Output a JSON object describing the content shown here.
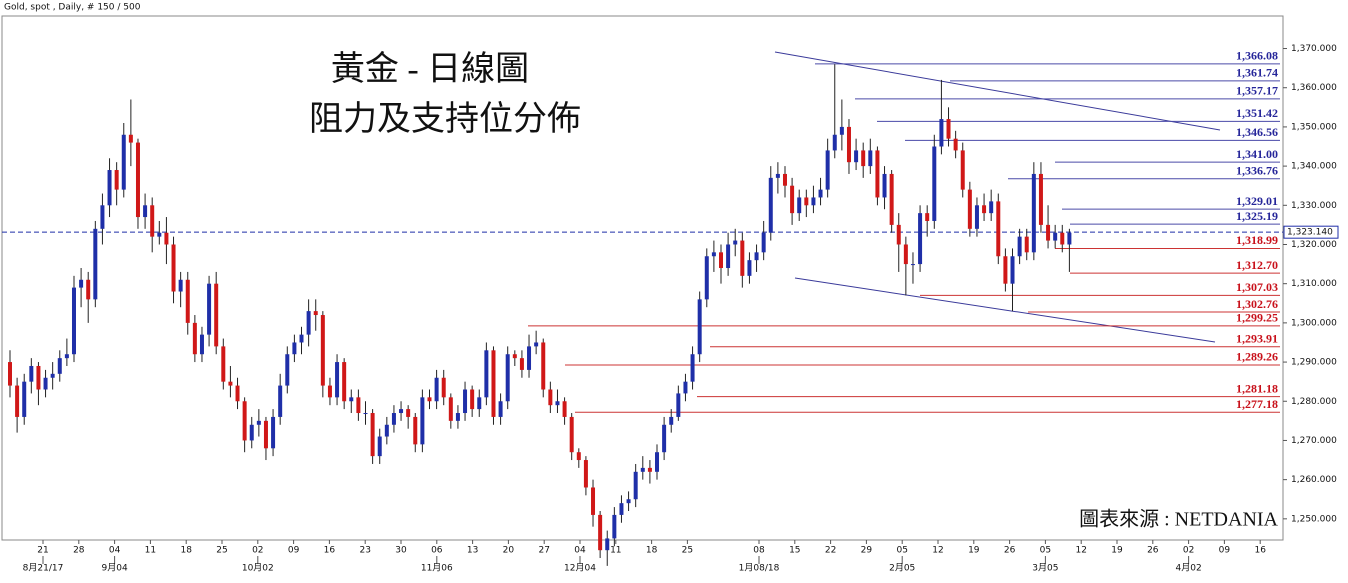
{
  "chart_data": {
    "type": "candlestick",
    "header": "Gold, spot , Daily, # 150 / 500",
    "title": "黃金 - 日線圖",
    "subtitle": "阻力及支持位分佈",
    "source": "圖表來源 : NETDANIA",
    "up_color": "#1f2fa8",
    "down_color": "#d01818",
    "ylim": [
      1244.6,
      1378.3
    ],
    "yticks": [
      {
        "value": 1250,
        "label": "1,250.000"
      },
      {
        "value": 1260,
        "label": "1,260.000"
      },
      {
        "value": 1270,
        "label": "1,270.000"
      },
      {
        "value": 1280,
        "label": "1,280.000"
      },
      {
        "value": 1290,
        "label": "1,290.000"
      },
      {
        "value": 1300,
        "label": "1,300.000"
      },
      {
        "value": 1310,
        "label": "1,310.000"
      },
      {
        "value": 1320,
        "label": "1,320.000"
      },
      {
        "value": 1330,
        "label": "1,330.000"
      },
      {
        "value": 1340,
        "label": "1,340.000"
      },
      {
        "value": 1350,
        "label": "1,350.000"
      },
      {
        "value": 1360,
        "label": "1,360.000"
      },
      {
        "value": 1370,
        "label": "1,370.000"
      }
    ],
    "xticks": [
      "21",
      "28",
      "04",
      "11",
      "18",
      "25",
      "02",
      "09",
      "16",
      "23",
      "30",
      "06",
      "13",
      "20",
      "27",
      "04",
      "11",
      "18",
      "25",
      null,
      "08",
      "15",
      "22",
      "29",
      "05",
      "12",
      "19",
      "26",
      "05",
      "12",
      "19",
      "26",
      "02",
      "09",
      "16"
    ],
    "month_labels": [
      "8月21/17",
      "9月04",
      "10月02",
      "11月06",
      "12月04",
      "1月08/18",
      "2月05",
      "3月05",
      "4月02"
    ],
    "last_price": {
      "value": 1323.14,
      "label": "1,323.140"
    },
    "resistance": [
      {
        "value": 1366.08,
        "label": "1,366.08"
      },
      {
        "value": 1361.74,
        "label": "1,361.74"
      },
      {
        "value": 1357.17,
        "label": "1,357.17"
      },
      {
        "value": 1351.42,
        "label": "1,351.42"
      },
      {
        "value": 1346.56,
        "label": "1,346.56"
      },
      {
        "value": 1341,
        "label": "1,341.00"
      },
      {
        "value": 1336.76,
        "label": "1,336.76"
      },
      {
        "value": 1329.01,
        "label": "1,329.01"
      },
      {
        "value": 1325.19,
        "label": "1,325.19"
      }
    ],
    "support": [
      {
        "value": 1318.99,
        "label": "1,318.99"
      },
      {
        "value": 1312.7,
        "label": "1,312.70"
      },
      {
        "value": 1307.03,
        "label": "1,307.03"
      },
      {
        "value": 1302.76,
        "label": "1,302.76"
      },
      {
        "value": 1299.25,
        "label": "1,299.25"
      },
      {
        "value": 1293.91,
        "label": "1,293.91"
      },
      {
        "value": 1289.26,
        "label": "1,289.26"
      },
      {
        "value": 1281.18,
        "label": "1,281.18"
      },
      {
        "value": 1277.18,
        "label": "1,277.18"
      }
    ],
    "ohlc": [
      [
        1290,
        1293,
        1281,
        1284
      ],
      [
        1284,
        1286,
        1272,
        1276
      ],
      [
        1276,
        1287,
        1274,
        1285
      ],
      [
        1285,
        1291,
        1282,
        1289
      ],
      [
        1289,
        1290,
        1279,
        1283
      ],
      [
        1283,
        1288,
        1281,
        1286
      ],
      [
        1286,
        1290,
        1283,
        1287
      ],
      [
        1287,
        1293,
        1285,
        1291
      ],
      [
        1291,
        1296,
        1289,
        1292
      ],
      [
        1292,
        1312,
        1290,
        1309
      ],
      [
        1309,
        1314,
        1304,
        1311
      ],
      [
        1311,
        1313,
        1300,
        1306
      ],
      [
        1306,
        1326,
        1304,
        1324
      ],
      [
        1324,
        1333,
        1320,
        1330
      ],
      [
        1330,
        1342,
        1327,
        1339
      ],
      [
        1339,
        1341,
        1330,
        1334
      ],
      [
        1334,
        1351,
        1332,
        1348
      ],
      [
        1348,
        1357,
        1340,
        1346
      ],
      [
        1346,
        1347,
        1324,
        1327
      ],
      [
        1327,
        1333,
        1324,
        1330
      ],
      [
        1330,
        1332,
        1318,
        1322
      ],
      [
        1322,
        1326,
        1320,
        1323
      ],
      [
        1323,
        1327,
        1315,
        1320
      ],
      [
        1320,
        1322,
        1305,
        1308
      ],
      [
        1308,
        1313,
        1304,
        1311
      ],
      [
        1311,
        1313,
        1297,
        1300
      ],
      [
        1300,
        1302,
        1290,
        1292
      ],
      [
        1292,
        1299,
        1290,
        1297
      ],
      [
        1297,
        1312,
        1294,
        1310
      ],
      [
        1310,
        1313,
        1292,
        1294
      ],
      [
        1294,
        1296,
        1283,
        1285
      ],
      [
        1285,
        1289,
        1281,
        1284
      ],
      [
        1284,
        1286,
        1278,
        1280
      ],
      [
        1280,
        1281,
        1267,
        1270
      ],
      [
        1270,
        1276,
        1268,
        1274
      ],
      [
        1274,
        1278,
        1271,
        1275
      ],
      [
        1275,
        1276,
        1265,
        1268
      ],
      [
        1268,
        1278,
        1266,
        1276
      ],
      [
        1276,
        1287,
        1274,
        1284
      ],
      [
        1284,
        1294,
        1282,
        1292
      ],
      [
        1292,
        1297,
        1290,
        1295
      ],
      [
        1295,
        1299,
        1292,
        1297
      ],
      [
        1297,
        1306,
        1294,
        1303
      ],
      [
        1303,
        1306,
        1298,
        1302
      ],
      [
        1302,
        1303,
        1281,
        1284
      ],
      [
        1284,
        1286,
        1279,
        1281
      ],
      [
        1281,
        1292,
        1279,
        1290
      ],
      [
        1290,
        1291,
        1278,
        1280
      ],
      [
        1280,
        1283,
        1277,
        1281
      ],
      [
        1281,
        1283,
        1275,
        1277
      ],
      [
        1277,
        1280,
        1274,
        1277
      ],
      [
        1277,
        1278,
        1264,
        1266
      ],
      [
        1266,
        1273,
        1264,
        1271
      ],
      [
        1271,
        1276,
        1269,
        1274
      ],
      [
        1274,
        1279,
        1272,
        1277
      ],
      [
        1277,
        1280,
        1275,
        1278
      ],
      [
        1278,
        1279,
        1273,
        1276
      ],
      [
        1276,
        1277,
        1267,
        1269
      ],
      [
        1269,
        1283,
        1267,
        1281
      ],
      [
        1281,
        1283,
        1278,
        1280
      ],
      [
        1280,
        1288,
        1278,
        1286
      ],
      [
        1286,
        1288,
        1279,
        1281
      ],
      [
        1281,
        1282,
        1273,
        1275
      ],
      [
        1275,
        1279,
        1273,
        1277
      ],
      [
        1277,
        1285,
        1275,
        1283
      ],
      [
        1283,
        1284,
        1276,
        1278
      ],
      [
        1278,
        1283,
        1276,
        1281
      ],
      [
        1281,
        1295,
        1279,
        1293
      ],
      [
        1293,
        1294,
        1274,
        1276
      ],
      [
        1276,
        1282,
        1274,
        1280
      ],
      [
        1280,
        1294,
        1278,
        1292
      ],
      [
        1292,
        1293,
        1289,
        1291
      ],
      [
        1291,
        1293,
        1286,
        1288
      ],
      [
        1288,
        1297,
        1286,
        1294
      ],
      [
        1294,
        1298,
        1292,
        1295
      ],
      [
        1295,
        1296,
        1281,
        1283
      ],
      [
        1283,
        1285,
        1277,
        1279
      ],
      [
        1279,
        1283,
        1277,
        1280
      ],
      [
        1280,
        1281,
        1274,
        1276
      ],
      [
        1276,
        1277,
        1265,
        1267
      ],
      [
        1267,
        1268,
        1263,
        1265
      ],
      [
        1265,
        1266,
        1256,
        1258
      ],
      [
        1258,
        1260,
        1248,
        1251
      ],
      [
        1251,
        1252,
        1240,
        1242
      ],
      [
        1242,
        1247,
        1238,
        1245
      ],
      [
        1245,
        1253,
        1243,
        1251
      ],
      [
        1251,
        1256,
        1249,
        1254
      ],
      [
        1254,
        1257,
        1252,
        1255
      ],
      [
        1255,
        1264,
        1253,
        1262
      ],
      [
        1262,
        1266,
        1260,
        1263
      ],
      [
        1263,
        1265,
        1259,
        1262
      ],
      [
        1262,
        1269,
        1260,
        1267
      ],
      [
        1267,
        1276,
        1265,
        1274
      ],
      [
        1274,
        1278,
        1272,
        1276
      ],
      [
        1276,
        1284,
        1275,
        1282
      ],
      [
        1282,
        1287,
        1280,
        1285
      ],
      [
        1285,
        1294,
        1283,
        1292
      ],
      [
        1292,
        1308,
        1290,
        1306
      ],
      [
        1306,
        1319,
        1304,
        1317
      ],
      [
        1317,
        1321,
        1313,
        1318
      ],
      [
        1318,
        1320,
        1310,
        1314
      ],
      [
        1314,
        1323,
        1312,
        1320
      ],
      [
        1320,
        1324,
        1317,
        1321
      ],
      [
        1321,
        1323,
        1309,
        1312
      ],
      [
        1312,
        1318,
        1310,
        1316
      ],
      [
        1316,
        1320,
        1313,
        1318
      ],
      [
        1318,
        1326,
        1316,
        1323
      ],
      [
        1323,
        1340,
        1321,
        1337
      ],
      [
        1337,
        1341,
        1333,
        1338
      ],
      [
        1338,
        1340,
        1332,
        1335
      ],
      [
        1335,
        1337,
        1325,
        1328
      ],
      [
        1328,
        1334,
        1326,
        1332
      ],
      [
        1332,
        1334,
        1327,
        1330
      ],
      [
        1330,
        1335,
        1328,
        1332
      ],
      [
        1332,
        1337,
        1330,
        1334
      ],
      [
        1334,
        1347,
        1332,
        1344
      ],
      [
        1344,
        1366,
        1342,
        1348
      ],
      [
        1348,
        1357,
        1344,
        1350
      ],
      [
        1350,
        1352,
        1338,
        1341
      ],
      [
        1341,
        1347,
        1339,
        1344
      ],
      [
        1344,
        1346,
        1337,
        1340
      ],
      [
        1340,
        1347,
        1338,
        1344
      ],
      [
        1344,
        1345,
        1330,
        1332
      ],
      [
        1332,
        1340,
        1329,
        1338
      ],
      [
        1338,
        1339,
        1323,
        1325
      ],
      [
        1325,
        1328,
        1313,
        1320
      ],
      [
        1320,
        1322,
        1307,
        1315
      ],
      [
        1315,
        1318,
        1310,
        1315
      ],
      [
        1315,
        1330,
        1313,
        1328
      ],
      [
        1328,
        1330,
        1322,
        1326
      ],
      [
        1326,
        1348,
        1324,
        1345
      ],
      [
        1345,
        1362,
        1343,
        1352
      ],
      [
        1352,
        1355,
        1345,
        1347
      ],
      [
        1347,
        1349,
        1342,
        1344
      ],
      [
        1344,
        1346,
        1332,
        1334
      ],
      [
        1334,
        1336,
        1322,
        1324
      ],
      [
        1324,
        1332,
        1322,
        1330
      ],
      [
        1330,
        1333,
        1326,
        1328
      ],
      [
        1328,
        1334,
        1326,
        1331
      ],
      [
        1331,
        1333,
        1315,
        1317
      ],
      [
        1317,
        1319,
        1308,
        1310
      ],
      [
        1310,
        1319,
        1303,
        1317
      ],
      [
        1317,
        1324,
        1315,
        1322
      ],
      [
        1322,
        1324,
        1316,
        1318
      ],
      [
        1318,
        1341,
        1316,
        1338
      ],
      [
        1338,
        1341,
        1323,
        1325
      ],
      [
        1325,
        1330,
        1319,
        1321
      ],
      [
        1321,
        1325,
        1319,
        1323
      ],
      [
        1323,
        1325,
        1318,
        1320
      ],
      [
        1320,
        1324,
        1313,
        1323
      ]
    ]
  }
}
